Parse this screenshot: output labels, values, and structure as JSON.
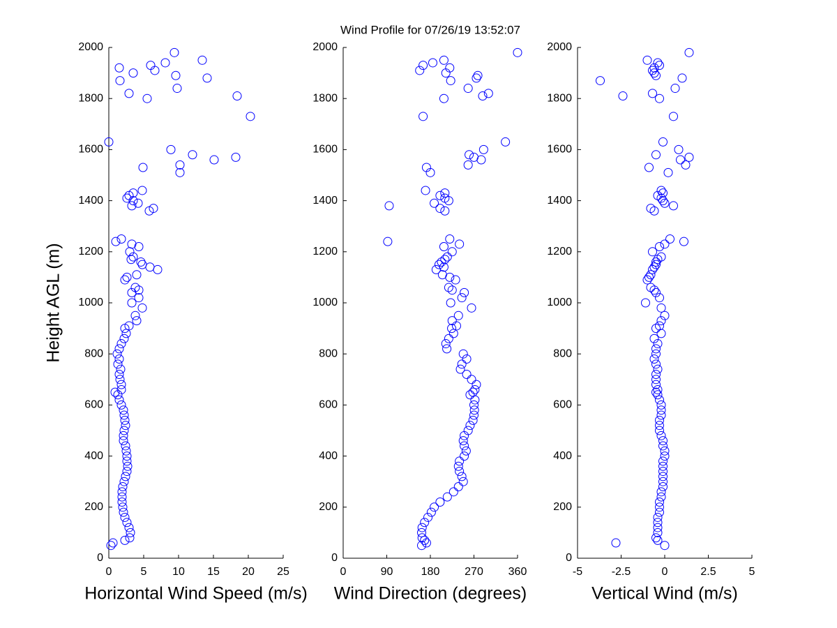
{
  "chart_data": [
    {
      "type": "scatter",
      "ylabel": "Height AGL (m)",
      "xlabel": "Horizontal Wind Speed (m/s)",
      "color": "#0000ff",
      "xlim": [
        0,
        25
      ],
      "xticks": [
        0,
        5,
        10,
        15,
        20,
        25
      ],
      "ylim": [
        0,
        2000
      ],
      "yticks": [
        0,
        200,
        400,
        600,
        800,
        1000,
        1200,
        1400,
        1600,
        1800,
        2000
      ],
      "x": [
        0.3,
        0.6,
        2.3,
        3.0,
        3.1,
        2.9,
        2.6,
        2.3,
        2.1,
        2.0,
        1.9,
        1.9,
        1.9,
        2.0,
        2.2,
        2.4,
        2.6,
        2.7,
        2.6,
        2.6,
        2.5,
        2.4,
        2.1,
        2.1,
        2.2,
        2.4,
        2.3,
        2.2,
        2.1,
        1.8,
        1.5,
        1.3,
        0.9,
        1.8,
        1.8,
        1.6,
        1.5,
        1.7,
        1.3,
        1.5,
        1.2,
        1.5,
        1.8,
        2.2,
        2.5,
        2.3,
        2.9,
        4.0,
        3.8,
        4.8,
        3.3,
        4.3,
        3.3,
        4.3,
        3.8,
        2.3,
        2.6,
        4.0,
        7.0,
        5.9,
        4.8,
        4.6,
        3.2,
        3.5,
        3.0,
        4.3,
        3.3,
        1.0,
        1.8,
        5.8,
        6.4,
        3.3,
        4.2,
        3.5,
        2.6,
        2.9,
        3.5,
        4.8,
        10.2,
        4.9,
        10.2,
        15.1,
        18.2,
        12.0,
        8.9,
        0.0,
        20.3,
        5.5,
        18.4,
        2.9,
        9.8,
        1.6,
        14.1,
        9.6,
        3.5,
        6.6,
        1.5,
        6.0,
        8.1,
        13.4,
        9.4
      ],
      "y": [
        50,
        60,
        70,
        80,
        100,
        120,
        140,
        160,
        180,
        200,
        220,
        240,
        260,
        280,
        300,
        320,
        340,
        360,
        380,
        400,
        420,
        440,
        460,
        480,
        500,
        520,
        540,
        560,
        580,
        600,
        620,
        640,
        650,
        660,
        680,
        700,
        720,
        740,
        760,
        780,
        800,
        820,
        840,
        860,
        880,
        900,
        910,
        930,
        950,
        980,
        1000,
        1020,
        1040,
        1050,
        1060,
        1090,
        1100,
        1110,
        1130,
        1140,
        1150,
        1160,
        1170,
        1180,
        1200,
        1220,
        1230,
        1240,
        1250,
        1360,
        1370,
        1380,
        1390,
        1400,
        1410,
        1420,
        1430,
        1440,
        1510,
        1530,
        1540,
        1560,
        1570,
        1580,
        1600,
        1630,
        1730,
        1800,
        1810,
        1820,
        1840,
        1870,
        1880,
        1890,
        1900,
        1910,
        1920,
        1930,
        1940,
        1950,
        1980
      ]
    },
    {
      "type": "scatter",
      "title": "Wind Profile for  07/26/19 13:52:07",
      "xlabel": "Wind Direction (degrees)",
      "color": "#0000ff",
      "xlim": [
        0,
        360
      ],
      "xticks": [
        0,
        90,
        180,
        270,
        360
      ],
      "ylim": [
        0,
        2000
      ],
      "yticks": [
        0,
        200,
        400,
        600,
        800,
        1000,
        1200,
        1400,
        1600,
        1800,
        2000
      ],
      "x": [
        162,
        172,
        168,
        163,
        162,
        163,
        168,
        175,
        182,
        188,
        200,
        215,
        228,
        238,
        248,
        245,
        240,
        238,
        240,
        250,
        254,
        250,
        248,
        250,
        258,
        262,
        268,
        270,
        271,
        270,
        272,
        262,
        268,
        272,
        275,
        265,
        255,
        242,
        245,
        255,
        248,
        214,
        212,
        218,
        228,
        224,
        234,
        225,
        238,
        265,
        222,
        245,
        250,
        225,
        218,
        232,
        220,
        205,
        192,
        208,
        198,
        203,
        210,
        215,
        225,
        208,
        240,
        92,
        220,
        210,
        200,
        95,
        188,
        218,
        210,
        200,
        210,
        170,
        180,
        172,
        258,
        285,
        270,
        260,
        290,
        335,
        165,
        208,
        288,
        300,
        258,
        222,
        275,
        278,
        212,
        158,
        220,
        165,
        185,
        208,
        360
      ],
      "y": [
        50,
        60,
        70,
        80,
        100,
        120,
        140,
        160,
        180,
        200,
        220,
        240,
        260,
        280,
        300,
        320,
        340,
        360,
        380,
        400,
        420,
        440,
        460,
        480,
        500,
        520,
        540,
        560,
        580,
        600,
        620,
        640,
        650,
        660,
        680,
        700,
        720,
        740,
        760,
        780,
        800,
        820,
        840,
        860,
        880,
        900,
        910,
        930,
        950,
        980,
        1000,
        1020,
        1040,
        1050,
        1060,
        1090,
        1100,
        1110,
        1130,
        1140,
        1150,
        1160,
        1170,
        1180,
        1200,
        1220,
        1230,
        1240,
        1250,
        1360,
        1370,
        1380,
        1390,
        1400,
        1410,
        1420,
        1430,
        1440,
        1510,
        1530,
        1540,
        1560,
        1570,
        1580,
        1600,
        1630,
        1730,
        1800,
        1810,
        1820,
        1840,
        1870,
        1880,
        1890,
        1900,
        1910,
        1920,
        1930,
        1940,
        1950,
        1980
      ]
    },
    {
      "type": "scatter",
      "xlabel": "Vertical Wind (m/s)",
      "color": "#0000ff",
      "xlim": [
        -5,
        5
      ],
      "xticks": [
        -5,
        -2.5,
        0,
        2.5,
        5
      ],
      "ylim": [
        0,
        2000
      ],
      "yticks": [
        0,
        200,
        400,
        600,
        800,
        1000,
        1200,
        1400,
        1600,
        1800,
        2000
      ],
      "x": [
        0.0,
        -2.8,
        -0.4,
        -0.5,
        -0.4,
        -0.4,
        -0.4,
        -0.4,
        -0.3,
        -0.3,
        -0.3,
        -0.2,
        -0.2,
        -0.1,
        -0.1,
        -0.1,
        -0.1,
        -0.1,
        -0.1,
        0.0,
        0.0,
        -0.1,
        -0.1,
        -0.2,
        -0.3,
        -0.3,
        -0.3,
        -0.2,
        -0.2,
        -0.2,
        -0.3,
        -0.4,
        -0.5,
        -0.4,
        -0.5,
        -0.5,
        -0.5,
        -0.4,
        -0.5,
        -0.6,
        -0.5,
        -0.5,
        -0.4,
        -0.6,
        -0.2,
        -0.5,
        -0.3,
        -0.2,
        0.0,
        -0.2,
        -1.1,
        -0.3,
        -0.5,
        -0.6,
        -0.8,
        -1.0,
        -0.9,
        -0.8,
        -0.7,
        -0.6,
        -0.5,
        -0.5,
        -0.4,
        -0.2,
        -0.7,
        -0.3,
        0.0,
        1.1,
        0.3,
        -0.6,
        -0.8,
        0.5,
        0.0,
        -0.1,
        -0.2,
        -0.4,
        -0.1,
        -0.2,
        0.2,
        -0.9,
        1.2,
        0.9,
        1.4,
        -0.5,
        0.8,
        -0.1,
        0.5,
        -0.3,
        -2.4,
        -0.7,
        0.6,
        -3.7,
        1.0,
        -0.5,
        -0.6,
        -0.7,
        -0.6,
        -0.3,
        -0.4,
        -1.0,
        1.4
      ],
      "y": [
        50,
        60,
        70,
        80,
        100,
        120,
        140,
        160,
        180,
        200,
        220,
        240,
        260,
        280,
        300,
        320,
        340,
        360,
        380,
        400,
        420,
        440,
        460,
        480,
        500,
        520,
        540,
        560,
        580,
        600,
        620,
        640,
        650,
        660,
        680,
        700,
        720,
        740,
        760,
        780,
        800,
        820,
        840,
        860,
        880,
        900,
        910,
        930,
        950,
        980,
        1000,
        1020,
        1040,
        1050,
        1060,
        1090,
        1100,
        1110,
        1130,
        1140,
        1150,
        1160,
        1170,
        1180,
        1200,
        1220,
        1230,
        1240,
        1250,
        1360,
        1370,
        1380,
        1390,
        1400,
        1410,
        1420,
        1430,
        1440,
        1510,
        1530,
        1540,
        1560,
        1570,
        1580,
        1600,
        1630,
        1730,
        1800,
        1810,
        1820,
        1840,
        1870,
        1880,
        1890,
        1900,
        1910,
        1920,
        1930,
        1940,
        1950,
        1980
      ]
    }
  ]
}
